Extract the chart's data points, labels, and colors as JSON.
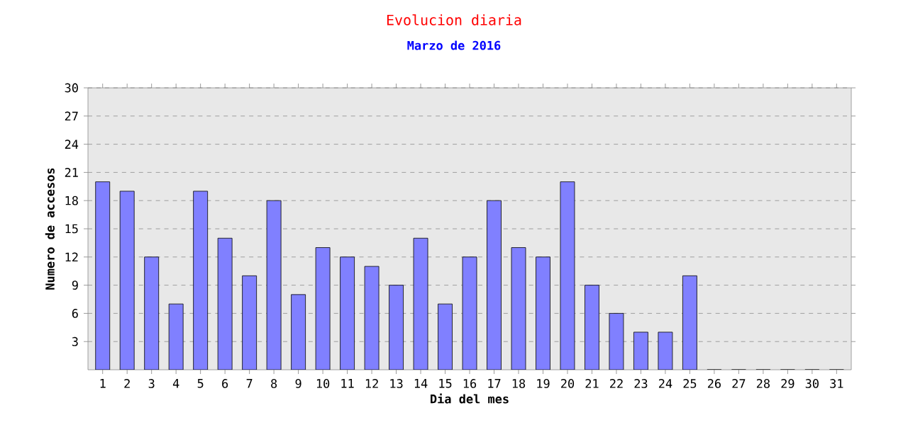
{
  "chart_data": {
    "type": "bar",
    "title": "Evolucion diaria",
    "subtitle": "Marzo de 2016",
    "xlabel": "Dia del mes",
    "ylabel": "Numero de accesos",
    "categories": [
      "1",
      "2",
      "3",
      "4",
      "5",
      "6",
      "7",
      "8",
      "9",
      "10",
      "11",
      "12",
      "13",
      "14",
      "15",
      "16",
      "17",
      "18",
      "19",
      "20",
      "21",
      "22",
      "23",
      "24",
      "25",
      "26",
      "27",
      "28",
      "29",
      "30",
      "31"
    ],
    "values": [
      20,
      19,
      12,
      7,
      19,
      14,
      10,
      18,
      8,
      13,
      12,
      11,
      9,
      14,
      7,
      12,
      18,
      13,
      12,
      20,
      9,
      6,
      4,
      4,
      10,
      0,
      0,
      0,
      0,
      0,
      0
    ],
    "color": "#8080ff",
    "ylim": [
      0,
      30
    ],
    "yticks": [
      3,
      6,
      9,
      12,
      15,
      18,
      21,
      24,
      27,
      30
    ],
    "grid": "y"
  }
}
